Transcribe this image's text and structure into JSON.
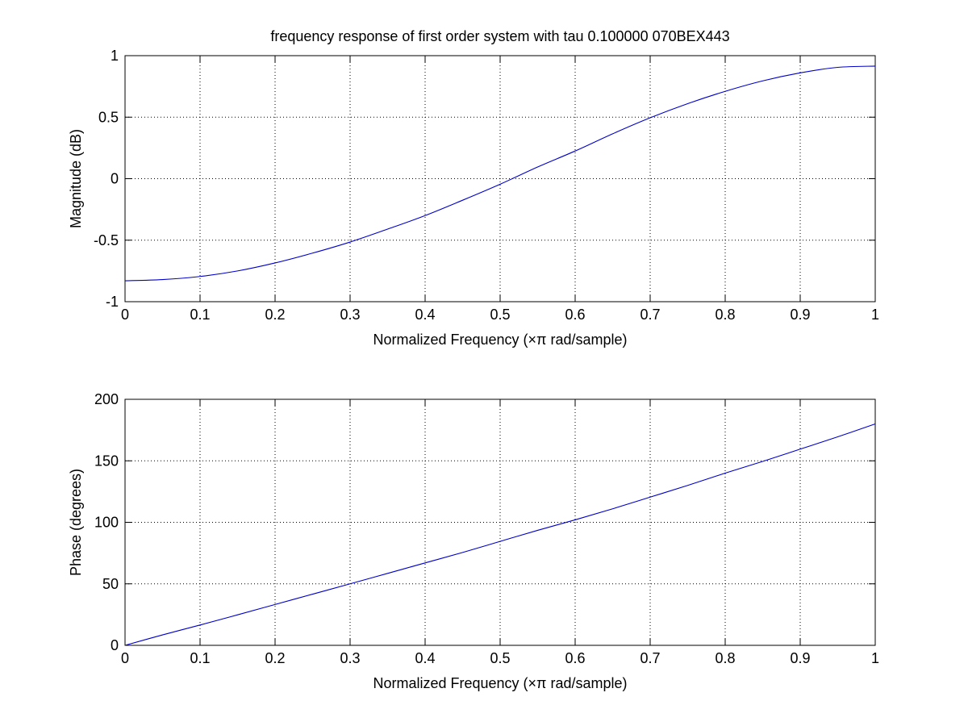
{
  "chart_data": [
    {
      "type": "line",
      "title": "frequency response of first order system with tau 0.100000 070BEX443",
      "xlabel": "Normalized Frequency  (×π rad/sample)",
      "ylabel": "Magnitude (dB)",
      "xlim": [
        0,
        1
      ],
      "ylim": [
        -1,
        1
      ],
      "xticks": [
        "0",
        "0.1",
        "0.2",
        "0.3",
        "0.4",
        "0.5",
        "0.6",
        "0.7",
        "0.8",
        "0.9",
        "1"
      ],
      "yticks": [
        "-1",
        "-0.5",
        "0",
        "0.5",
        "1"
      ],
      "grid": true,
      "color": "#0000cc",
      "x": [
        0,
        0.05,
        0.1,
        0.15,
        0.2,
        0.25,
        0.3,
        0.35,
        0.4,
        0.45,
        0.5,
        0.55,
        0.6,
        0.65,
        0.7,
        0.75,
        0.8,
        0.85,
        0.9,
        0.95,
        1
      ],
      "y": [
        -0.83,
        -0.82,
        -0.795,
        -0.75,
        -0.685,
        -0.605,
        -0.515,
        -0.41,
        -0.3,
        -0.175,
        -0.045,
        0.095,
        0.225,
        0.365,
        0.495,
        0.61,
        0.71,
        0.795,
        0.86,
        0.905,
        0.915
      ]
    },
    {
      "type": "line",
      "title": "",
      "xlabel": "Normalized Frequency  (×π rad/sample)",
      "ylabel": "Phase (degrees)",
      "xlim": [
        0,
        1
      ],
      "ylim": [
        0,
        200
      ],
      "xticks": [
        "0",
        "0.1",
        "0.2",
        "0.3",
        "0.4",
        "0.5",
        "0.6",
        "0.7",
        "0.8",
        "0.9",
        "1"
      ],
      "yticks": [
        "0",
        "50",
        "100",
        "150",
        "200"
      ],
      "grid": true,
      "color": "#0000cc",
      "x": [
        0,
        0.05,
        0.1,
        0.15,
        0.2,
        0.25,
        0.3,
        0.35,
        0.4,
        0.45,
        0.5,
        0.55,
        0.6,
        0.65,
        0.7,
        0.75,
        0.8,
        0.85,
        0.9,
        0.95,
        1
      ],
      "y": [
        0,
        8.5,
        16.5,
        24.8,
        33.2,
        41.6,
        50,
        58.5,
        67,
        75.5,
        84.5,
        93.5,
        102,
        111,
        120.5,
        130,
        140,
        149.5,
        159.5,
        169.5,
        180
      ]
    }
  ]
}
